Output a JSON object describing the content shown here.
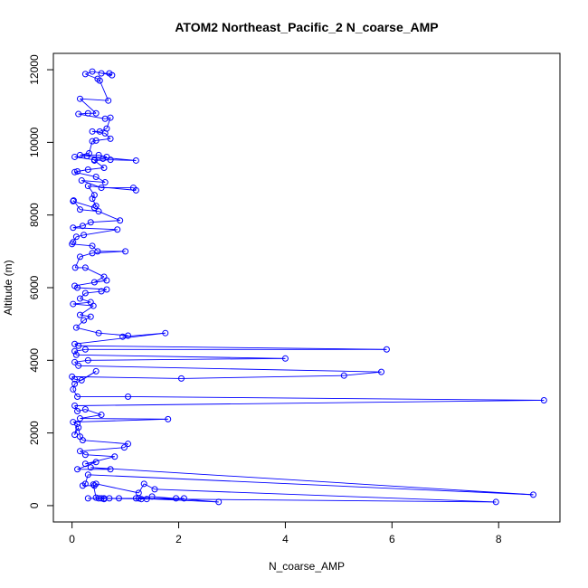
{
  "chart_data": {
    "type": "line",
    "title": "ATOM2 Northeast_Pacific_2 N_coarse_AMP",
    "xlabel": "N_coarse_AMP",
    "ylabel": "Altitude (m)",
    "xlim": [
      -0.35,
      9.15
    ],
    "ylim": [
      -450,
      12450
    ],
    "x_ticks": [
      0,
      2,
      4,
      6,
      8
    ],
    "y_ticks": [
      0,
      2000,
      4000,
      6000,
      8000,
      10000,
      12000
    ],
    "grid": false,
    "legend": "none",
    "color": "#0000ff",
    "series": [
      {
        "points": [
          [
            0.55,
            11900
          ],
          [
            0.7,
            11900
          ],
          [
            0.75,
            11850
          ],
          [
            0.38,
            11950
          ],
          [
            0.25,
            11880
          ],
          [
            0.48,
            11750
          ],
          [
            0.52,
            11700
          ],
          [
            0.68,
            11150
          ],
          [
            0.15,
            11200
          ],
          [
            0.45,
            10800
          ],
          [
            0.3,
            10800
          ],
          [
            0.12,
            10780
          ],
          [
            0.62,
            10650
          ],
          [
            0.72,
            10680
          ],
          [
            0.65,
            10380
          ],
          [
            0.52,
            10300
          ],
          [
            0.38,
            10300
          ],
          [
            0.62,
            10250
          ],
          [
            0.72,
            10100
          ],
          [
            0.45,
            10050
          ],
          [
            0.38,
            10030
          ],
          [
            0.32,
            9700
          ],
          [
            0.15,
            9650
          ],
          [
            0.5,
            9650
          ],
          [
            0.65,
            9600
          ],
          [
            0.58,
            9550
          ],
          [
            0.42,
            9520
          ],
          [
            0.05,
            9600
          ],
          [
            0.28,
            9620
          ],
          [
            1.2,
            9500
          ],
          [
            0.72,
            9520
          ],
          [
            0.42,
            9500
          ],
          [
            0.6,
            9300
          ],
          [
            0.3,
            9250
          ],
          [
            0.1,
            9200
          ],
          [
            0.05,
            9180
          ],
          [
            0.45,
            9050
          ],
          [
            0.62,
            8900
          ],
          [
            0.18,
            8950
          ],
          [
            0.55,
            8750
          ],
          [
            1.15,
            8750
          ],
          [
            1.2,
            8680
          ],
          [
            0.3,
            8800
          ],
          [
            0.42,
            8550
          ],
          [
            0.38,
            8450
          ],
          [
            0.45,
            8250
          ],
          [
            0.42,
            8200
          ],
          [
            0.02,
            8380
          ],
          [
            0.03,
            8400
          ],
          [
            0.15,
            8150
          ],
          [
            0.5,
            8100
          ],
          [
            0.9,
            7850
          ],
          [
            0.35,
            7800
          ],
          [
            0.2,
            7700
          ],
          [
            0.02,
            7650
          ],
          [
            0.85,
            7600
          ],
          [
            0.22,
            7450
          ],
          [
            0.08,
            7400
          ],
          [
            0.02,
            7250
          ],
          [
            0.0,
            7200
          ],
          [
            0.38,
            7150
          ],
          [
            0.48,
            7000
          ],
          [
            1.0,
            7000
          ],
          [
            0.38,
            6950
          ],
          [
            0.15,
            6850
          ],
          [
            0.06,
            6550
          ],
          [
            0.25,
            6550
          ],
          [
            0.6,
            6300
          ],
          [
            0.42,
            6150
          ],
          [
            0.65,
            6200
          ],
          [
            0.05,
            6050
          ],
          [
            0.1,
            6000
          ],
          [
            0.65,
            5950
          ],
          [
            0.55,
            5900
          ],
          [
            0.25,
            5850
          ],
          [
            0.15,
            5700
          ],
          [
            0.35,
            5600
          ],
          [
            0.02,
            5550
          ],
          [
            0.4,
            5500
          ],
          [
            0.15,
            5250
          ],
          [
            0.35,
            5200
          ],
          [
            0.22,
            5100
          ],
          [
            0.08,
            4900
          ],
          [
            0.5,
            4750
          ],
          [
            1.05,
            4680
          ],
          [
            0.95,
            4650
          ],
          [
            1.75,
            4750
          ],
          [
            0.05,
            4450
          ],
          [
            0.12,
            4400
          ],
          [
            5.9,
            4300
          ],
          [
            0.25,
            4300
          ],
          [
            0.05,
            4250
          ],
          [
            0.08,
            4150
          ],
          [
            4.0,
            4050
          ],
          [
            0.3,
            4000
          ],
          [
            0.05,
            3950
          ],
          [
            0.12,
            3850
          ],
          [
            5.8,
            3680
          ],
          [
            5.1,
            3580
          ],
          [
            2.05,
            3500
          ],
          [
            0.0,
            3550
          ],
          [
            0.05,
            3480
          ],
          [
            0.18,
            3450
          ],
          [
            0.45,
            3700
          ],
          [
            0.05,
            3350
          ],
          [
            0.02,
            3200
          ],
          [
            0.1,
            3000
          ],
          [
            1.05,
            3000
          ],
          [
            8.85,
            2900
          ],
          [
            0.05,
            2750
          ],
          [
            0.1,
            2600
          ],
          [
            0.25,
            2650
          ],
          [
            0.55,
            2500
          ],
          [
            0.15,
            2400
          ],
          [
            1.8,
            2380
          ],
          [
            0.02,
            2300
          ],
          [
            0.1,
            2250
          ],
          [
            0.05,
            1950
          ],
          [
            0.12,
            2150
          ],
          [
            0.15,
            1900
          ],
          [
            0.2,
            1800
          ],
          [
            1.05,
            1700
          ],
          [
            0.98,
            1600
          ],
          [
            0.15,
            1500
          ],
          [
            0.25,
            1400
          ],
          [
            0.8,
            1350
          ],
          [
            0.25,
            1150
          ],
          [
            0.45,
            1200
          ],
          [
            0.1,
            1000
          ],
          [
            0.72,
            1000
          ],
          [
            0.35,
            1050
          ],
          [
            8.65,
            300
          ],
          [
            0.3,
            850
          ],
          [
            0.25,
            600
          ],
          [
            0.2,
            550
          ],
          [
            0.42,
            550
          ],
          [
            0.45,
            600
          ],
          [
            1.25,
            350
          ],
          [
            1.35,
            600
          ],
          [
            1.55,
            450
          ],
          [
            7.95,
            100
          ],
          [
            0.3,
            200
          ],
          [
            0.5,
            200
          ],
          [
            0.6,
            180
          ],
          [
            0.55,
            200
          ],
          [
            0.6,
            200
          ],
          [
            0.88,
            200
          ],
          [
            1.2,
            200
          ],
          [
            1.5,
            250
          ],
          [
            2.75,
            100
          ],
          [
            1.25,
            200
          ],
          [
            1.3,
            180
          ],
          [
            1.4,
            180
          ],
          [
            1.95,
            200
          ],
          [
            2.1,
            200
          ],
          [
            0.7,
            200
          ],
          [
            0.45,
            220
          ],
          [
            0.4,
            580
          ]
        ]
      }
    ]
  }
}
